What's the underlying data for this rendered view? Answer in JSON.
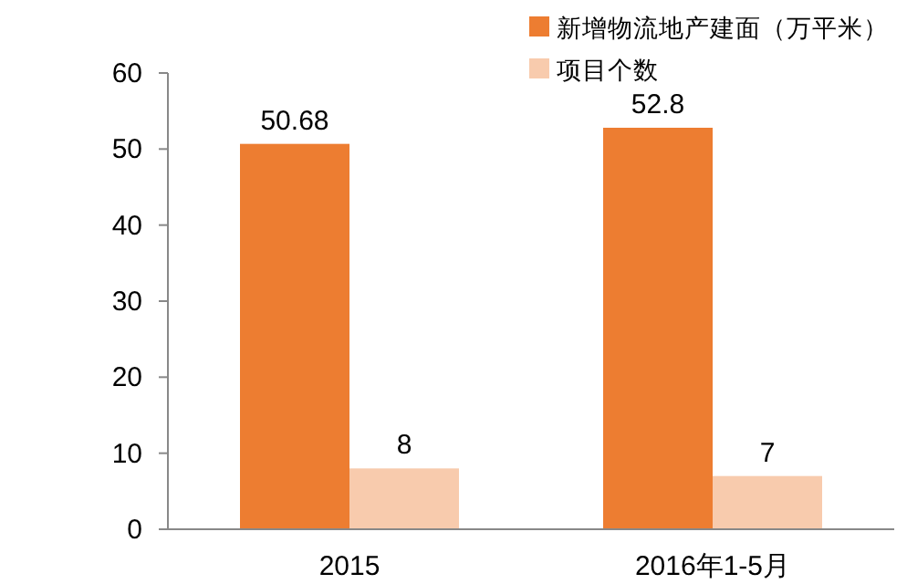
{
  "chart_data": {
    "type": "bar",
    "categories": [
      "2015",
      "2016年1-5月"
    ],
    "series": [
      {
        "name": "新增物流地产建面（万平米）",
        "color": "#ed7d31",
        "values": [
          50.68,
          52.8
        ]
      },
      {
        "name": "项目个数",
        "color": "#f8cbad",
        "values": [
          8,
          7
        ]
      }
    ],
    "ylim": [
      0,
      60
    ],
    "yticks": [
      0,
      10,
      20,
      30,
      40,
      50,
      60
    ],
    "data_labels": true,
    "grid": false,
    "legend": "top right"
  }
}
